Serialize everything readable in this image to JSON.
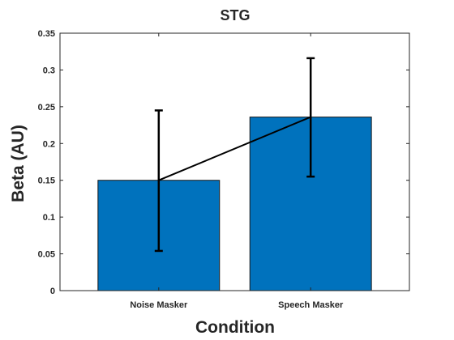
{
  "chart_data": {
    "type": "bar",
    "title": "STG",
    "xlabel": "Condition",
    "ylabel": "Beta (AU)",
    "categories": [
      "Noise Masker",
      "Speech Masker"
    ],
    "values": [
      0.15,
      0.236
    ],
    "error_upper": [
      0.245,
      0.316
    ],
    "error_lower": [
      0.054,
      0.155
    ],
    "ylim": [
      0,
      0.35
    ],
    "yticks": [
      "0",
      "0.05",
      "0.1",
      "0.15",
      "0.2",
      "0.25",
      "0.3",
      "0.35"
    ],
    "bar_color": "#0072BD",
    "grid": false,
    "connect_means": true
  }
}
